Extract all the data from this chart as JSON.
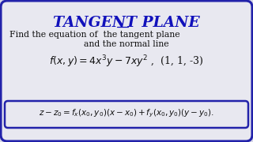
{
  "title": "TANGENT PLANE",
  "title_color": "#1111BB",
  "bg_color": "#D8D8E8",
  "inner_bg": "#E8E8F0",
  "border_color": "#2222AA",
  "text_color": "#111111",
  "subtitle_line1": "Find the equation of  the tangent plane",
  "subtitle_line2": "and the normal line",
  "formula": "$f(x,y)\\!=\\!4x^3y-7xy^2$ ,  (1, 1, -3)",
  "box_formula": "$z-z_0 = f_x(x_0,y_0)(x-x_0)+f_y(x_0,y_0)(y-y_0).$"
}
